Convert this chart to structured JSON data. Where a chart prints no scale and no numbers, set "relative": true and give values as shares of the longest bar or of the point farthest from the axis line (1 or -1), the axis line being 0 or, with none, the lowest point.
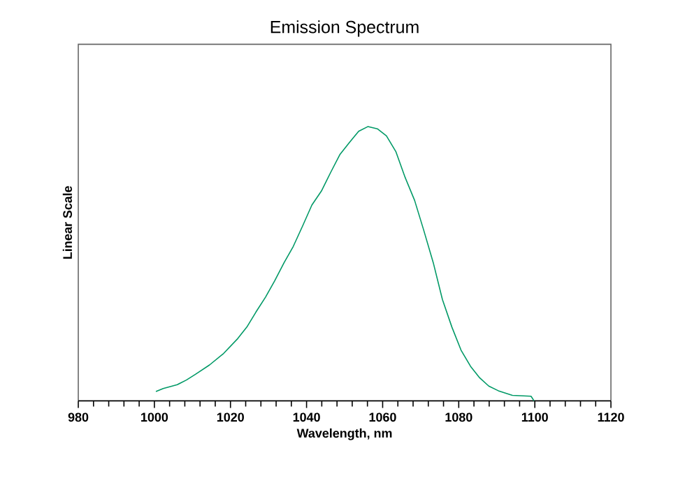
{
  "chart_data": {
    "type": "line",
    "title": "Emission Spectrum",
    "xlabel": "Wavelength, nm",
    "ylabel": "Linear Scale",
    "relative": true,
    "color": "#009966",
    "x": [
      1000.4,
      1002.3,
      1006,
      1008.4,
      1010.8,
      1014.5,
      1018.2,
      1021.9,
      1024.3,
      1026.7,
      1029.2,
      1031.6,
      1034.1,
      1036.5,
      1039,
      1041.4,
      1043.9,
      1046.3,
      1048.8,
      1051.2,
      1053.7,
      1056.1,
      1058.6,
      1061,
      1063.5,
      1065.9,
      1068.4,
      1070.8,
      1073.3,
      1075.7,
      1078.2,
      1080.6,
      1083.1,
      1085.5,
      1087.9,
      1090.4,
      1094.1,
      1099,
      1099.8
    ],
    "values": [
      0.034,
      0.045,
      0.059,
      0.076,
      0.097,
      0.131,
      0.173,
      0.227,
      0.269,
      0.324,
      0.378,
      0.437,
      0.504,
      0.563,
      0.639,
      0.714,
      0.765,
      0.832,
      0.899,
      0.941,
      0.983,
      1.0,
      0.992,
      0.966,
      0.908,
      0.815,
      0.731,
      0.622,
      0.504,
      0.37,
      0.269,
      0.185,
      0.126,
      0.084,
      0.054,
      0.037,
      0.02,
      0.017,
      0.0
    ],
    "xlim": [
      980,
      1120
    ],
    "xticks": [
      980,
      1000,
      1020,
      1040,
      1060,
      1080,
      1100,
      1120
    ]
  }
}
